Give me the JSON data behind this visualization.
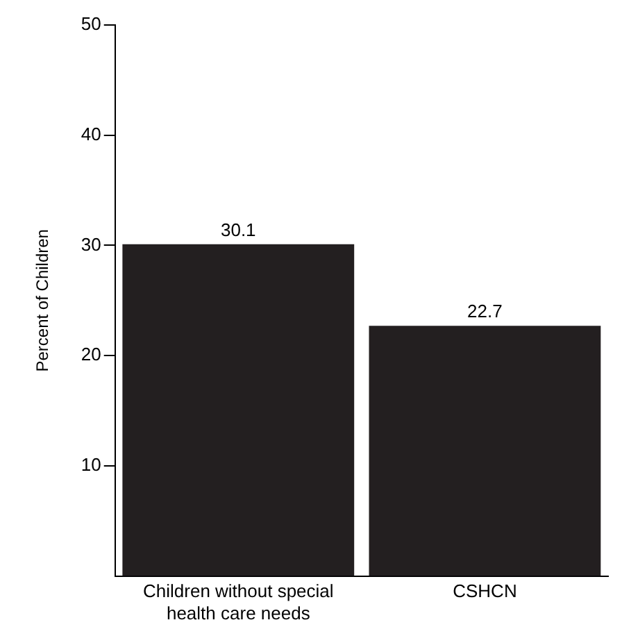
{
  "chart_data": {
    "type": "bar",
    "ylabel": "Percent of Children",
    "categories": [
      "Children without special health care needs",
      "CSHCN"
    ],
    "values": [
      30.1,
      22.7
    ],
    "color": "#231f20",
    "ylim": [
      0,
      50
    ],
    "yticks": [
      10,
      20,
      30,
      40,
      50
    ],
    "grid": false,
    "legend": false,
    "data_labels": true
  }
}
